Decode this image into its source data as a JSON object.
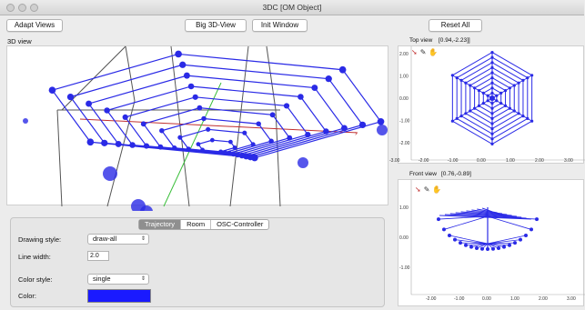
{
  "window": {
    "title": "3DC [OM Object]"
  },
  "toolbar": {
    "adapt_views": "Adapt Views",
    "big_3d_view": "Big 3D-View",
    "init_window": "Init Window",
    "reset_all": "Reset All"
  },
  "view3d": {
    "label": "3D view"
  },
  "top_view": {
    "label": "Top view",
    "coords": "[0.94,-2.23]]",
    "y_ticks": [
      "2.00",
      "1.00",
      "0.00",
      "-1.00",
      "-2.00"
    ],
    "x_ticks": [
      "-3.00",
      "-2.00",
      "-1.00",
      "0.00",
      "1.00",
      "2.00",
      "3.00"
    ]
  },
  "front_view": {
    "label": "Front view",
    "coords": "[0.76,-0.89]",
    "y_ticks": [
      "1.00",
      "0.00",
      "-1.00"
    ],
    "x_ticks": [
      "-2.00",
      "-1.00",
      "0.00",
      "1.00",
      "2.00",
      "3.00"
    ]
  },
  "tabs": [
    "Trajectory",
    "Room",
    "OSC-Controller"
  ],
  "controls": {
    "drawing_style_label": "Drawing style:",
    "drawing_style_value": "draw-all",
    "line_width_label": "Line width:",
    "line_width_value": "2.0",
    "color_style_label": "Color style:",
    "color_style_value": "single",
    "color_label": "Color:",
    "color_value": "#1a1aff"
  },
  "icons": {
    "traffic_lights": [
      "close-button",
      "minimize-button",
      "zoom-button"
    ],
    "view_tools": [
      "pointer-icon",
      "pen-icon",
      "hand-icon"
    ]
  },
  "colors": {
    "trajectory": "#2a2ae6",
    "x_axis": "#c03030",
    "y_axis": "#3bbf3b",
    "room_lines": "#555555"
  }
}
